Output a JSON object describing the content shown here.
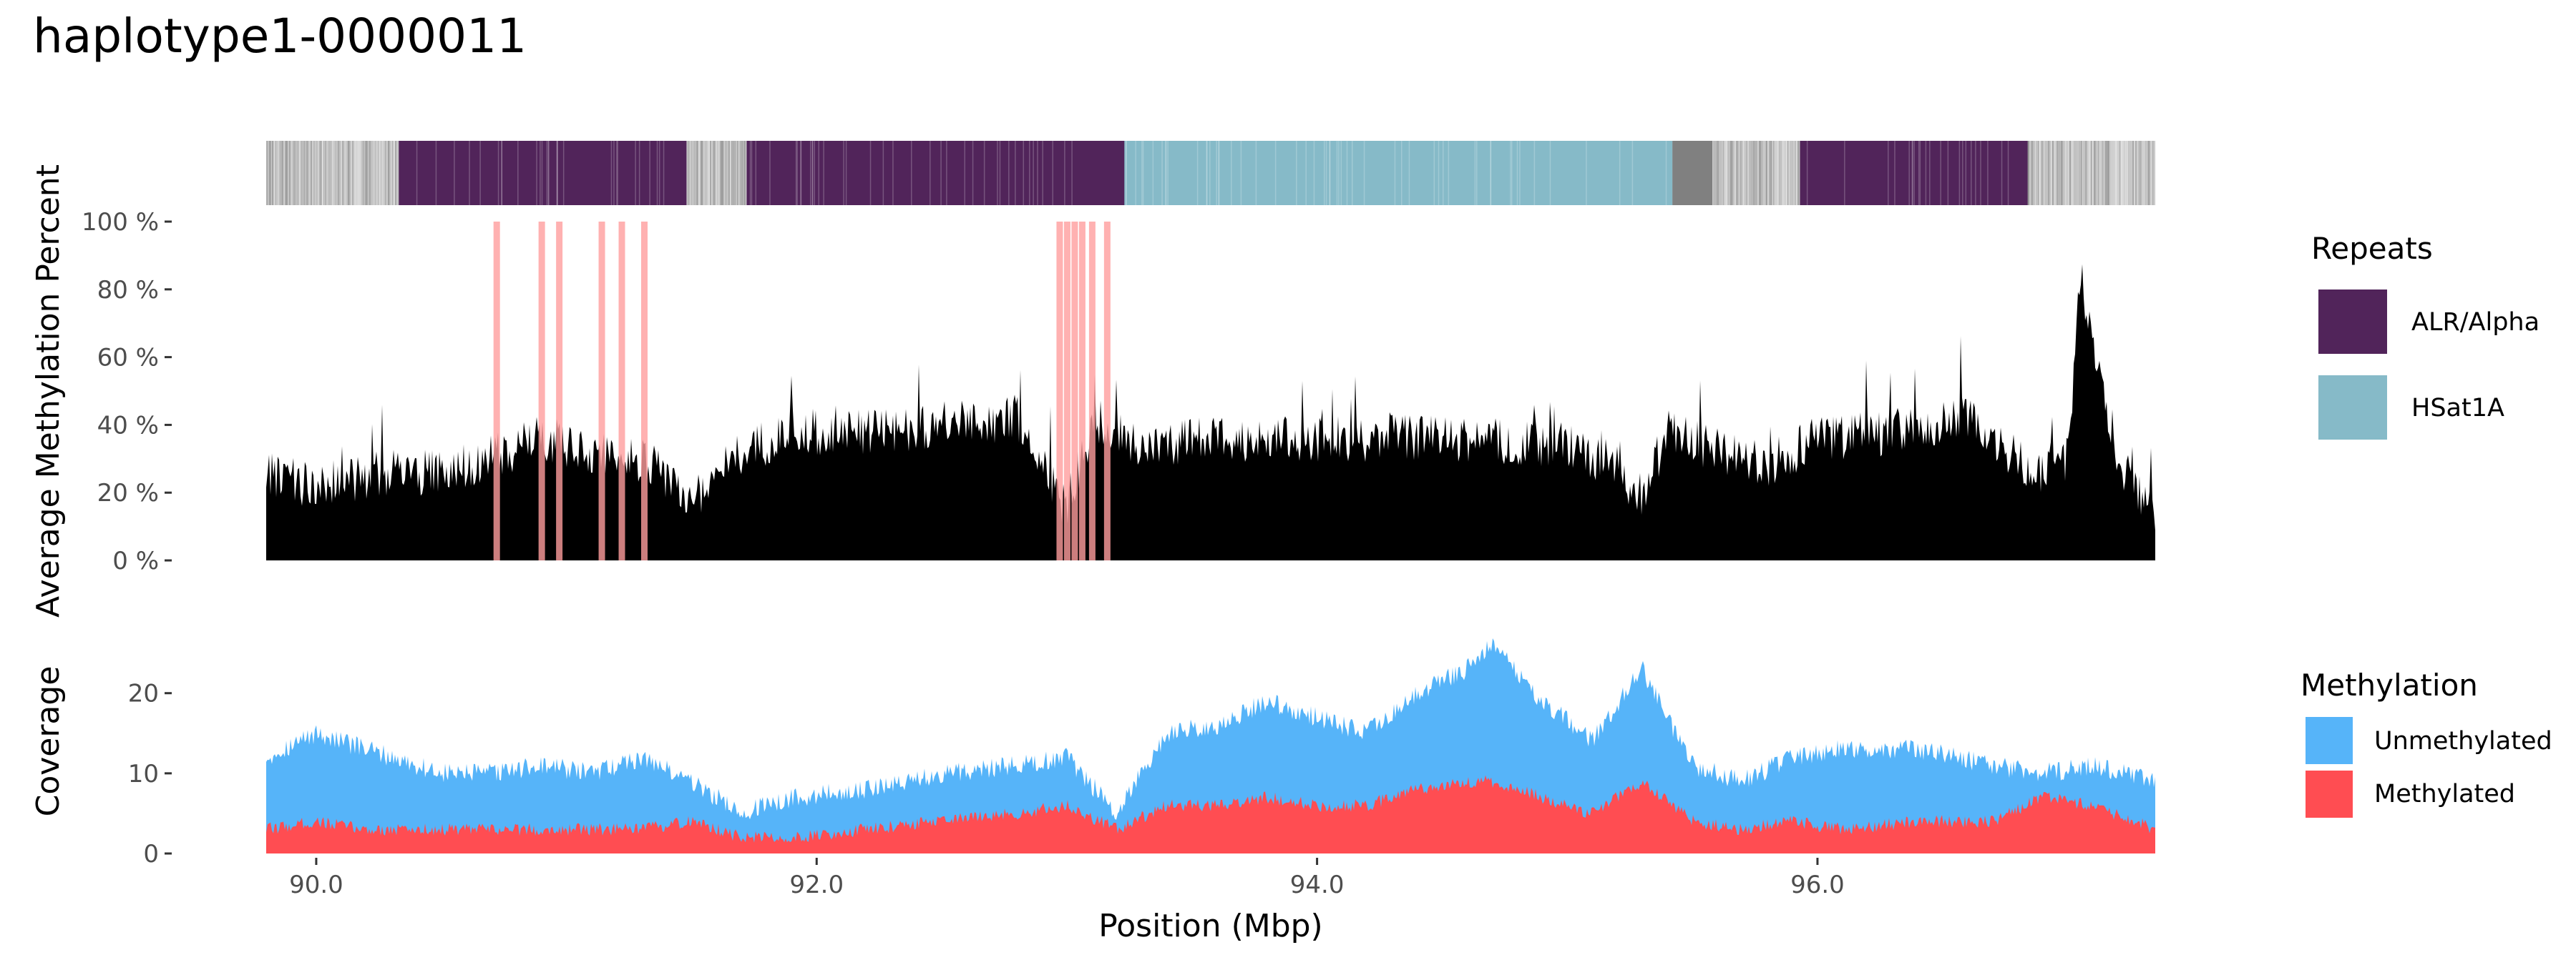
{
  "title": "haplotype1-0000011",
  "chart_data": {
    "x_range": [
      89.8,
      97.35
    ],
    "xlabel": "Position (Mbp)",
    "x_ticks": [
      90.0,
      92.0,
      94.0,
      96.0
    ],
    "x_tick_labels": [
      "90.0",
      "92.0",
      "94.0",
      "96.0"
    ],
    "repeat_track": {
      "type": "annotation-track",
      "legend_title": "Repeats",
      "classes": [
        {
          "name": "ALR/Alpha",
          "color": "#51245a"
        },
        {
          "name": "HSat1A",
          "color": "#86bac8"
        }
      ],
      "segments": [
        {
          "class": "ALR/Alpha",
          "start": 90.33,
          "end": 91.48
        },
        {
          "class": "ALR/Alpha",
          "start": 91.72,
          "end": 93.23
        },
        {
          "class": "HSat1A",
          "start": 93.23,
          "end": 95.42
        },
        {
          "class": "ALR/Alpha",
          "start": 95.93,
          "end": 96.84
        }
      ],
      "other_repeats": [
        {
          "start": 95.42,
          "end": 95.58,
          "shade": "#808080"
        }
      ]
    },
    "methylation_panel": {
      "type": "area",
      "ylabel": "Average Methylation Percent",
      "ylim": [
        0,
        100
      ],
      "y_ticks": [
        0,
        20,
        40,
        60,
        80,
        100
      ],
      "y_tick_labels": [
        "0 %",
        "20 %",
        "40 %",
        "60 %",
        "80 %",
        "100 %"
      ],
      "fill": "#000000",
      "highlight_color": "#ff9e9e",
      "highlight_regions": [
        90.72,
        90.9,
        90.97,
        91.14,
        91.22,
        91.31,
        92.97,
        93.0,
        93.03,
        93.06,
        93.1,
        93.16
      ],
      "profile": {
        "x": [
          89.8,
          90.0,
          90.3,
          90.5,
          90.7,
          90.9,
          91.1,
          91.3,
          91.5,
          91.7,
          91.9,
          92.2,
          92.5,
          92.8,
          93.0,
          93.1,
          93.3,
          93.6,
          94.0,
          94.5,
          95.0,
          95.2,
          95.3,
          95.4,
          95.6,
          95.8,
          96.0,
          96.3,
          96.6,
          96.85,
          97.0,
          97.05,
          97.2,
          97.35
        ],
        "y": [
          25,
          22,
          26,
          26,
          30,
          36,
          32,
          30,
          18,
          32,
          38,
          38,
          40,
          42,
          15,
          40,
          34,
          36,
          36,
          36,
          34,
          28,
          18,
          38,
          32,
          28,
          36,
          38,
          42,
          26,
          30,
          85,
          30,
          14
        ]
      }
    },
    "coverage_panel": {
      "type": "area",
      "ylabel": "Coverage",
      "ylim": [
        0,
        28
      ],
      "y_ticks": [
        0,
        10,
        20
      ],
      "y_tick_labels": [
        "0",
        "10",
        "20"
      ],
      "legend_title": "Methylation",
      "series": [
        {
          "name": "Unmethylated",
          "color": "#56b4f9",
          "x": [
            89.8,
            90.0,
            90.2,
            90.5,
            90.7,
            90.9,
            91.1,
            91.3,
            91.5,
            91.7,
            91.9,
            92.2,
            92.5,
            92.8,
            93.0,
            93.2,
            93.4,
            93.6,
            93.8,
            94.0,
            94.2,
            94.4,
            94.6,
            94.7,
            94.9,
            95.1,
            95.3,
            95.5,
            95.7,
            95.9,
            96.1,
            96.4,
            96.7,
            96.9,
            97.1,
            97.35
          ],
          "y": [
            12,
            15,
            13,
            10,
            10,
            11,
            10,
            12,
            9,
            5,
            7,
            8,
            10,
            11,
            12,
            5,
            15,
            16,
            19,
            17,
            15,
            20,
            23,
            26,
            19,
            14,
            23,
            11,
            9,
            12,
            13,
            13,
            11,
            10,
            11,
            9
          ]
        },
        {
          "name": "Methylated",
          "color": "#ff4d52",
          "x": [
            89.8,
            90.0,
            90.2,
            90.5,
            90.7,
            90.9,
            91.1,
            91.3,
            91.5,
            91.7,
            91.9,
            92.2,
            92.5,
            92.8,
            93.0,
            93.2,
            93.4,
            93.6,
            93.8,
            94.0,
            94.2,
            94.4,
            94.6,
            94.7,
            94.9,
            95.1,
            95.3,
            95.5,
            95.7,
            95.9,
            96.1,
            96.4,
            96.7,
            96.9,
            97.1,
            97.35
          ],
          "y": [
            3,
            4,
            3,
            3,
            3,
            3,
            3,
            3,
            4,
            2,
            2,
            3,
            4,
            5,
            6,
            3,
            6,
            6,
            7,
            6,
            6,
            8,
            9,
            9,
            7,
            5,
            9,
            4,
            3,
            4,
            3,
            4,
            4,
            7,
            6,
            3
          ]
        }
      ]
    }
  }
}
